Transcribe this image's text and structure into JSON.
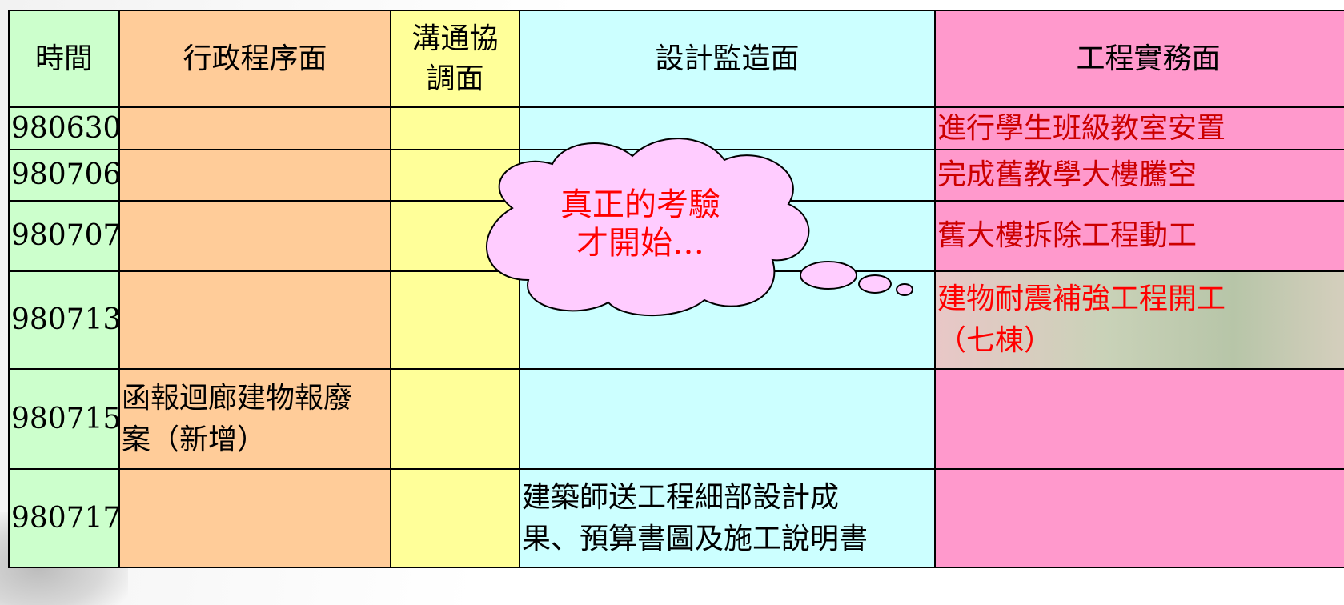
{
  "header": {
    "cells": [
      [
        "時間"
      ],
      [
        "行政程序面"
      ],
      [
        "溝通協",
        "調面"
      ],
      [
        "設計監造面"
      ],
      [
        "工程實務面"
      ]
    ]
  },
  "rows": [
    {
      "date": "980630",
      "cells": [
        [],
        [],
        [],
        [
          "進行學生班級教室安置"
        ]
      ]
    },
    {
      "date": "980706",
      "cells": [
        [],
        [],
        [],
        [
          "完成舊教學大樓騰空"
        ]
      ]
    },
    {
      "date": "980707",
      "cells": [
        [],
        [],
        [],
        [
          "舊大樓拆除工程動工"
        ]
      ]
    },
    {
      "date": "980713",
      "cells": [
        [],
        [],
        [],
        [
          "建物耐震補強工程開工",
          "（七棟）"
        ]
      ]
    },
    {
      "date": "980715",
      "cells": [
        [
          "函報迴廊建物報廢",
          "案（新增）"
        ],
        [],
        [],
        []
      ]
    },
    {
      "date": "980717",
      "cells": [
        [],
        [],
        [
          "建築師送工程細部設計成",
          "果、預算書圖及施工說明書"
        ],
        []
      ]
    }
  ],
  "callout": {
    "lines": [
      "真正的考驗",
      "才開始…"
    ]
  }
}
